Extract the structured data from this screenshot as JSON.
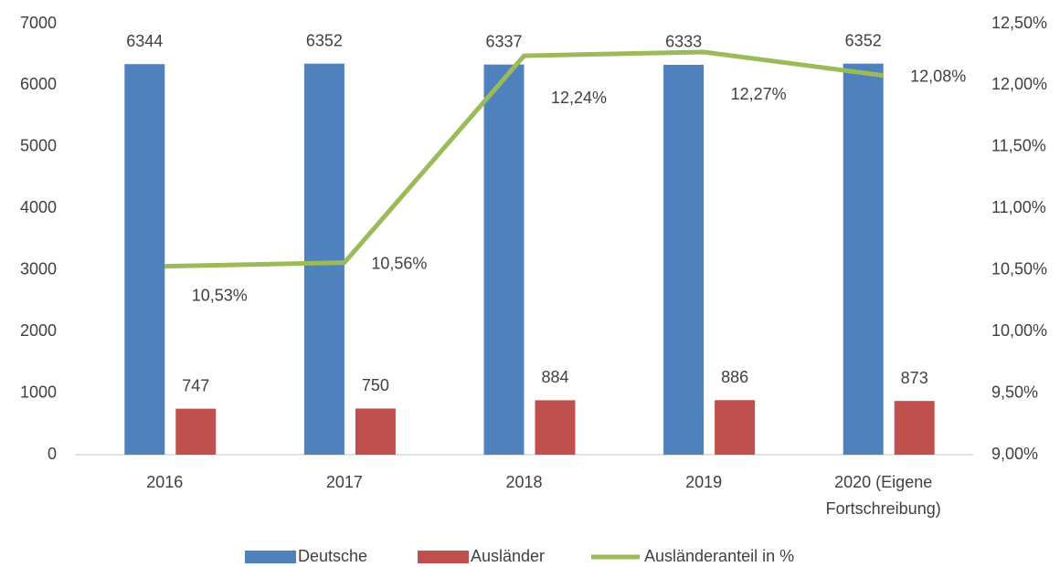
{
  "chart_data": {
    "type": "bar_line",
    "categories": [
      "2016",
      "2017",
      "2018",
      "2019",
      "2020 (Eigene Fortschreibung)"
    ],
    "series": [
      {
        "name": "Deutsche",
        "type": "bar",
        "color": "#4f81bd",
        "values": [
          6344,
          6352,
          6337,
          6333,
          6352
        ]
      },
      {
        "name": "Ausländer",
        "type": "bar",
        "color": "#c0504d",
        "values": [
          747,
          750,
          884,
          886,
          873
        ]
      },
      {
        "name": "Ausländeranteil in %",
        "type": "line",
        "axis": "y2",
        "color": "#9bbb59",
        "values": [
          10.53,
          10.56,
          12.24,
          12.27,
          12.08
        ],
        "value_labels": [
          "10,53%",
          "10,56%",
          "12,24%",
          "12,27%",
          "12,08%"
        ]
      }
    ],
    "ylim": [
      0,
      7000
    ],
    "yticks": [
      0,
      1000,
      2000,
      3000,
      4000,
      5000,
      6000,
      7000
    ],
    "y2lim": [
      9,
      12.5
    ],
    "y2ticks": [
      {
        "value": 9,
        "label": "9,00%"
      },
      {
        "value": 9.5,
        "label": "9,50%"
      },
      {
        "value": 10,
        "label": "10,00%"
      },
      {
        "value": 10.5,
        "label": "10,50%"
      },
      {
        "value": 11,
        "label": "11,00%"
      },
      {
        "value": 11.5,
        "label": "11,50%"
      },
      {
        "value": 12,
        "label": "12,00%"
      },
      {
        "value": 12.5,
        "label": "12,50%"
      }
    ],
    "grid": false,
    "legend": "bottom"
  }
}
